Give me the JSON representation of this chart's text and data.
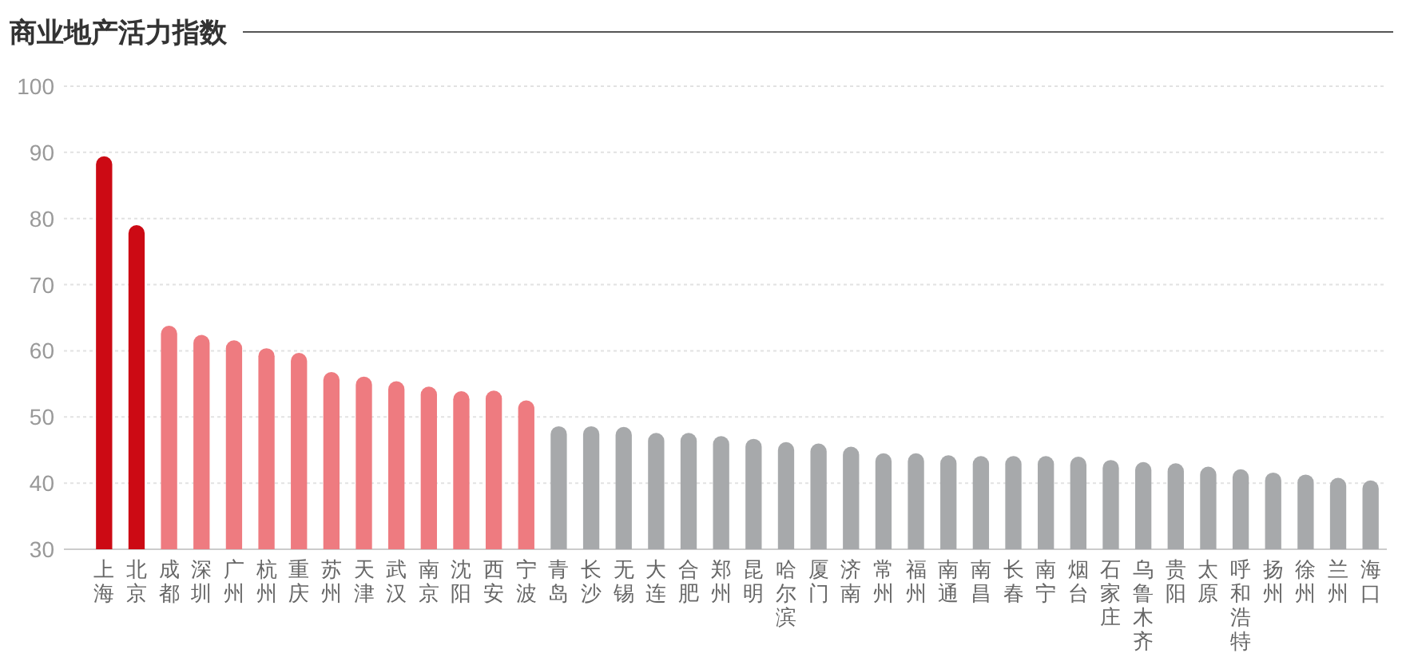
{
  "chart_data": {
    "type": "bar",
    "title": "商业地产活力指数",
    "categories": [
      "上海",
      "北京",
      "成都",
      "深圳",
      "广州",
      "杭州",
      "重庆",
      "苏州",
      "天津",
      "武汉",
      "南京",
      "沈阳",
      "西安",
      "宁波",
      "青岛",
      "长沙",
      "无锡",
      "大连",
      "合肥",
      "郑州",
      "昆明",
      "哈尔滨",
      "厦门",
      "济南",
      "常州",
      "福州",
      "南通",
      "南昌",
      "长春",
      "南宁",
      "烟台",
      "石家庄",
      "乌鲁木齐",
      "贵阳",
      "太原",
      "呼和浩特",
      "扬州",
      "徐州",
      "兰州",
      "海口"
    ],
    "values": [
      89.4,
      79.0,
      63.8,
      62.4,
      61.6,
      60.4,
      59.7,
      56.8,
      56.1,
      55.4,
      54.6,
      53.9,
      54.0,
      52.5,
      48.6,
      48.6,
      48.5,
      47.6,
      47.6,
      47.1,
      46.7,
      46.2,
      46.0,
      45.5,
      44.5,
      44.5,
      44.2,
      44.1,
      44.1,
      44.1,
      44.0,
      43.5,
      43.2,
      43.0,
      42.5,
      42.1,
      41.6,
      41.3,
      40.8,
      40.4
    ],
    "colors": [
      "#cc0a14",
      "#cc0a14",
      "#ee7b80",
      "#ee7b80",
      "#ee7b80",
      "#ee7b80",
      "#ee7b80",
      "#ee7b80",
      "#ee7b80",
      "#ee7b80",
      "#ee7b80",
      "#ee7b80",
      "#ee7b80",
      "#ee7b80",
      "#a7a9ab",
      "#a7a9ab",
      "#a7a9ab",
      "#a7a9ab",
      "#a7a9ab",
      "#a7a9ab",
      "#a7a9ab",
      "#a7a9ab",
      "#a7a9ab",
      "#a7a9ab",
      "#a7a9ab",
      "#a7a9ab",
      "#a7a9ab",
      "#a7a9ab",
      "#a7a9ab",
      "#a7a9ab",
      "#a7a9ab",
      "#a7a9ab",
      "#a7a9ab",
      "#a7a9ab",
      "#a7a9ab",
      "#a7a9ab",
      "#a7a9ab",
      "#a7a9ab",
      "#a7a9ab",
      "#a7a9ab"
    ],
    "ylim": [
      30,
      100
    ],
    "yticks": [
      30,
      40,
      50,
      60,
      70,
      80,
      90,
      100
    ],
    "grid": "y"
  }
}
